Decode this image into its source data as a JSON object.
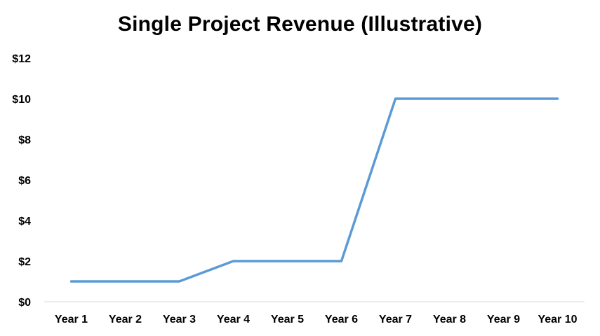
{
  "chart_data": {
    "type": "line",
    "title": "Single Project Revenue (Illustrative)",
    "xlabel": "",
    "ylabel": "",
    "categories": [
      "Year 1",
      "Year 2",
      "Year 3",
      "Year 4",
      "Year 5",
      "Year 6",
      "Year 7",
      "Year 8",
      "Year 9",
      "Year 10"
    ],
    "series": [
      {
        "values": [
          1,
          1,
          1,
          2,
          2,
          2,
          10,
          10,
          10,
          10
        ],
        "color": "#5B9BD5"
      }
    ],
    "ylim": [
      0,
      12
    ],
    "yticks": [
      0,
      2,
      4,
      6,
      8,
      10,
      12
    ],
    "ytick_labels": [
      "$0",
      "$2",
      "$4",
      "$6",
      "$8",
      "$10",
      "$12"
    ],
    "grid": false,
    "legend": "none",
    "axis_color": "#D9D9D9"
  }
}
